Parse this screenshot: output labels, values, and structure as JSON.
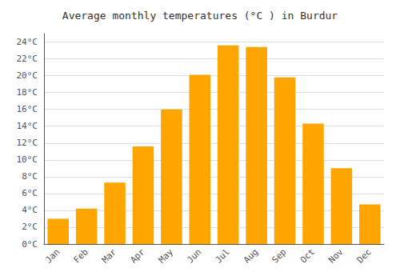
{
  "chart_data": {
    "type": "bar",
    "title": "Average monthly temperatures (°C ) in Burdur",
    "categories": [
      "Jan",
      "Feb",
      "Mar",
      "Apr",
      "May",
      "Jun",
      "Jul",
      "Aug",
      "Sep",
      "Oct",
      "Nov",
      "Dec"
    ],
    "values": [
      3.0,
      4.2,
      7.3,
      11.6,
      16.0,
      20.1,
      23.6,
      23.4,
      19.8,
      14.3,
      9.0,
      4.7
    ],
    "color": "#FFA500",
    "ylim": [
      0,
      25
    ],
    "yticks": [
      {
        "value": 0,
        "label": "0°C"
      },
      {
        "value": 2,
        "label": "2°C"
      },
      {
        "value": 4,
        "label": "4°C"
      },
      {
        "value": 6,
        "label": "6°C"
      },
      {
        "value": 8,
        "label": "8°C"
      },
      {
        "value": 10,
        "label": "10°C"
      },
      {
        "value": 12,
        "label": "12°C"
      },
      {
        "value": 14,
        "label": "14°C"
      },
      {
        "value": 16,
        "label": "16°C"
      },
      {
        "value": 18,
        "label": "18°C"
      },
      {
        "value": 20,
        "label": "20°C"
      },
      {
        "value": 22,
        "label": "22°C"
      },
      {
        "value": 24,
        "label": "24°C"
      }
    ],
    "grid": true
  }
}
